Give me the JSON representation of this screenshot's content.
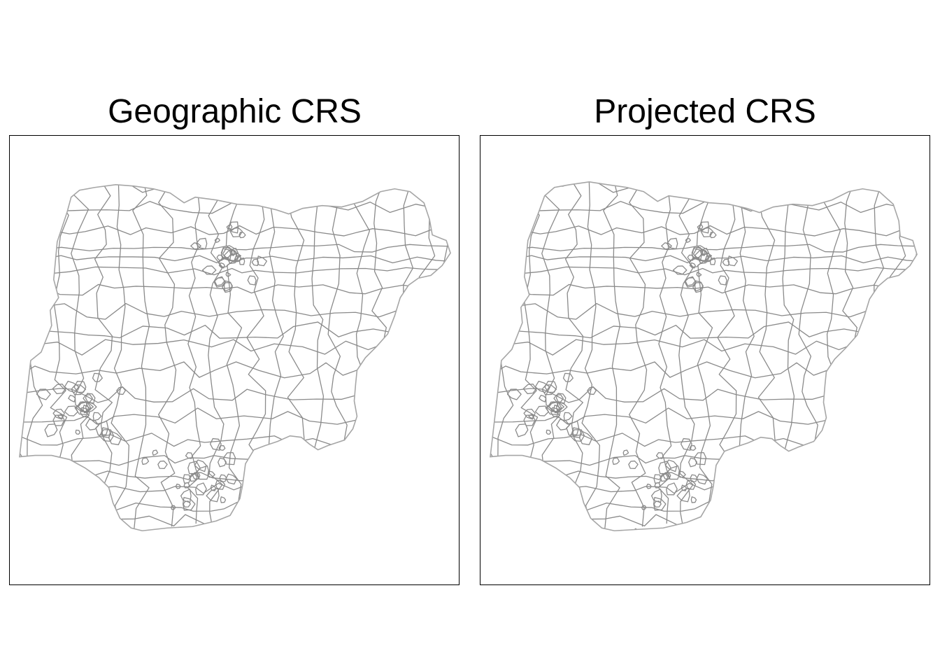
{
  "panels": [
    {
      "title": "Geographic CRS"
    },
    {
      "title": "Projected CRS"
    }
  ],
  "colors": {
    "boundary": "#8a8a8a",
    "outline": "#a6a6a6",
    "frame": "#000000",
    "background": "#ffffff"
  }
}
